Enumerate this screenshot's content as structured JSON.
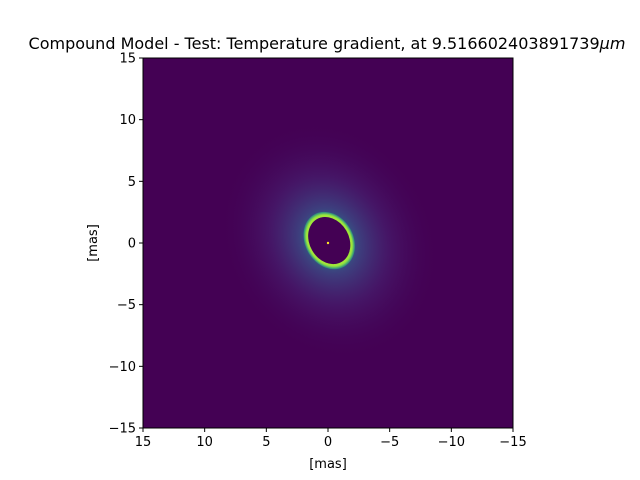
{
  "chart_data": {
    "type": "heatmap",
    "title": "Compound Model - Test: Temperature gradient, at 9.516602403891739",
    "title_unit": "μm",
    "xlabel": "[mas]",
    "ylabel": "[mas]",
    "xlim": [
      15,
      -15
    ],
    "ylim": [
      -15,
      15
    ],
    "xticks": [
      {
        "value": 15,
        "label": "15"
      },
      {
        "value": 10,
        "label": "10"
      },
      {
        "value": 5,
        "label": "5"
      },
      {
        "value": 0,
        "label": "0"
      },
      {
        "value": -5,
        "label": "−5"
      },
      {
        "value": -10,
        "label": "−10"
      },
      {
        "value": -15,
        "label": "−15"
      }
    ],
    "yticks": [
      {
        "value": 15,
        "label": "15"
      },
      {
        "value": 10,
        "label": "10"
      },
      {
        "value": 5,
        "label": "5"
      },
      {
        "value": 0,
        "label": "0"
      },
      {
        "value": -5,
        "label": "−5"
      },
      {
        "value": -10,
        "label": "−10"
      },
      {
        "value": -15,
        "label": "−15"
      }
    ],
    "colormap": "viridis",
    "grid": false,
    "features": {
      "inner_cavity": {
        "center": [
          -0.1,
          0.2
        ],
        "semi_major": 2.0,
        "semi_minor": 1.6,
        "rotation_deg": -30
      },
      "bright_rim_color": "#a0e63a",
      "diffuse_halo_extent": 10,
      "central_point_source": {
        "position": [
          0,
          0
        ],
        "color": "#ffe725"
      }
    },
    "colors": {
      "background": "#440154",
      "rim": "#7ad151",
      "halo_inner": "#2a788e",
      "halo_mid": "#3b528b",
      "cavity": "#440154"
    }
  }
}
